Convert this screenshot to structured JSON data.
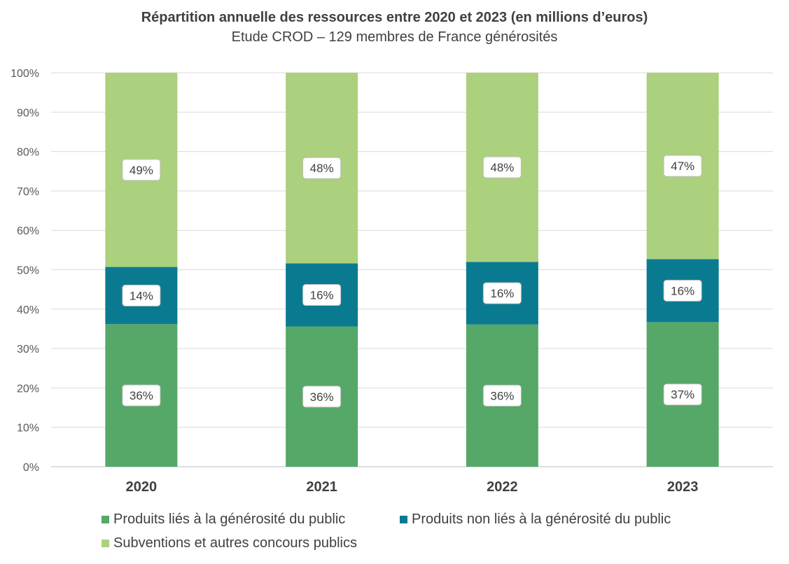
{
  "chart_data": {
    "type": "bar",
    "stacked": true,
    "percent": true,
    "title": "Répartition annuelle des ressources entre 2020 et 2023 (en millions d’euros)",
    "subtitle": "Etude CROD – 129 membres de France générosités",
    "categories": [
      "2020",
      "2021",
      "2022",
      "2023"
    ],
    "ylim": [
      0,
      100
    ],
    "yticks": [
      "0%",
      "10%",
      "20%",
      "30%",
      "40%",
      "50%",
      "60%",
      "70%",
      "80%",
      "90%",
      "100%"
    ],
    "grid": true,
    "legend_position": "bottom",
    "series": [
      {
        "name": "Produits liés à la générosité du public",
        "color": "#55A868",
        "values": [
          36.2,
          35.6,
          36.1,
          36.7
        ],
        "labels": [
          "36%",
          "36%",
          "36%",
          "37%"
        ]
      },
      {
        "name": "Produits non liés à la générosité du public",
        "color": "#0A7A91",
        "values": [
          14.5,
          16.0,
          15.9,
          16.0
        ],
        "labels": [
          "14%",
          "16%",
          "16%",
          "16%"
        ]
      },
      {
        "name": "Subventions et autres concours publics",
        "color": "#ABD07E",
        "values": [
          49.3,
          48.4,
          48.0,
          47.3
        ],
        "labels": [
          "49%",
          "48%",
          "48%",
          "47%"
        ]
      }
    ]
  }
}
